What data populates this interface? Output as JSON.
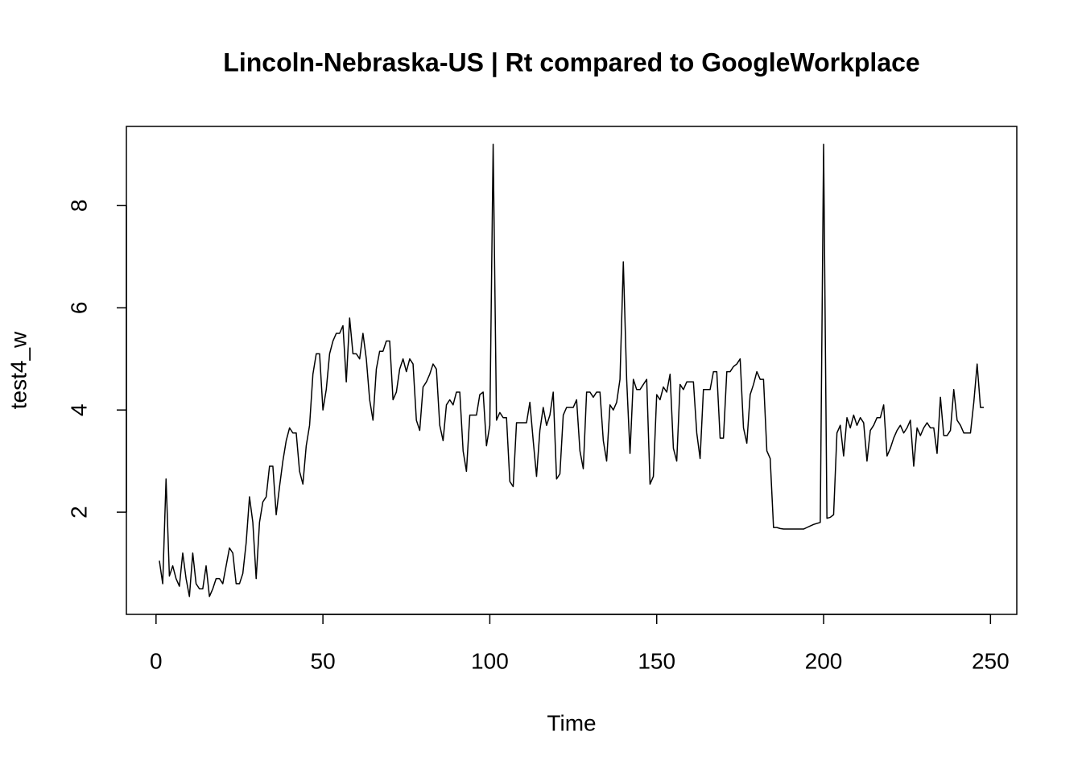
{
  "chart_data": {
    "type": "line",
    "title": "Lincoln-Nebraska-US | Rt compared to GoogleWorkplace",
    "xlabel": "Time",
    "ylabel": "test4_w",
    "color": "#000000",
    "x": [
      1,
      2,
      3,
      4,
      5,
      6,
      7,
      8,
      9,
      10,
      11,
      12,
      13,
      14,
      15,
      16,
      17,
      18,
      19,
      20,
      21,
      22,
      23,
      24,
      25,
      26,
      27,
      28,
      29,
      30,
      31,
      32,
      33,
      34,
      35,
      36,
      37,
      38,
      39,
      40,
      41,
      42,
      43,
      44,
      45,
      46,
      47,
      48,
      49,
      50,
      51,
      52,
      53,
      54,
      55,
      56,
      57,
      58,
      59,
      60,
      61,
      62,
      63,
      64,
      65,
      66,
      67,
      68,
      69,
      70,
      71,
      72,
      73,
      74,
      75,
      76,
      77,
      78,
      79,
      80,
      81,
      82,
      83,
      84,
      85,
      86,
      87,
      88,
      89,
      90,
      91,
      92,
      93,
      94,
      95,
      96,
      97,
      98,
      99,
      100,
      101,
      102,
      103,
      104,
      105,
      106,
      107,
      108,
      109,
      110,
      111,
      112,
      113,
      114,
      115,
      116,
      117,
      118,
      119,
      120,
      121,
      122,
      123,
      124,
      125,
      126,
      127,
      128,
      129,
      130,
      131,
      132,
      133,
      134,
      135,
      136,
      137,
      138,
      139,
      140,
      141,
      142,
      143,
      144,
      145,
      146,
      147,
      148,
      149,
      150,
      151,
      152,
      153,
      154,
      155,
      156,
      157,
      158,
      159,
      160,
      161,
      162,
      163,
      164,
      165,
      166,
      167,
      168,
      169,
      170,
      171,
      172,
      173,
      174,
      175,
      176,
      177,
      178,
      179,
      180,
      181,
      182,
      183,
      184,
      185,
      186,
      187,
      188,
      189,
      190,
      191,
      192,
      193,
      194,
      195,
      196,
      197,
      198,
      199,
      200,
      201,
      202,
      203,
      204,
      205,
      206,
      207,
      208,
      209,
      210,
      211,
      212,
      213,
      214,
      215,
      216,
      217,
      218,
      219,
      220,
      221,
      222,
      223,
      224,
      225,
      226,
      227,
      228,
      229,
      230,
      231,
      232,
      233,
      234,
      235,
      236,
      237,
      238,
      239,
      240,
      241,
      242,
      243,
      244,
      245,
      246,
      247,
      248
    ],
    "values": [
      1.05,
      0.6,
      2.65,
      0.75,
      0.95,
      0.7,
      0.55,
      1.2,
      0.7,
      0.35,
      1.2,
      0.6,
      0.5,
      0.5,
      0.95,
      0.35,
      0.5,
      0.7,
      0.7,
      0.6,
      0.95,
      1.3,
      1.2,
      0.6,
      0.6,
      0.8,
      1.4,
      2.3,
      1.8,
      0.7,
      1.8,
      2.2,
      2.3,
      2.9,
      2.9,
      1.95,
      2.5,
      3.0,
      3.4,
      3.65,
      3.55,
      3.55,
      2.8,
      2.55,
      3.3,
      3.7,
      4.7,
      5.1,
      5.1,
      4.0,
      4.4,
      5.1,
      5.35,
      5.5,
      5.5,
      5.65,
      4.55,
      5.8,
      5.1,
      5.1,
      5.0,
      5.5,
      5.0,
      4.2,
      3.8,
      4.8,
      5.15,
      5.15,
      5.35,
      5.35,
      4.2,
      4.35,
      4.8,
      5.0,
      4.75,
      5.0,
      4.9,
      3.8,
      3.6,
      4.45,
      4.55,
      4.7,
      4.9,
      4.8,
      3.7,
      3.4,
      4.1,
      4.2,
      4.1,
      4.35,
      4.35,
      3.2,
      2.8,
      3.9,
      3.9,
      3.9,
      4.3,
      4.35,
      3.3,
      3.7,
      9.2,
      3.8,
      3.95,
      3.85,
      3.85,
      2.6,
      2.5,
      3.75,
      3.75,
      3.75,
      3.75,
      4.15,
      3.4,
      2.7,
      3.6,
      4.05,
      3.7,
      3.9,
      4.35,
      2.65,
      2.75,
      3.9,
      4.05,
      4.05,
      4.05,
      4.2,
      3.2,
      2.85,
      4.35,
      4.35,
      4.25,
      4.35,
      4.35,
      3.4,
      3.0,
      4.1,
      4.0,
      4.15,
      4.6,
      6.9,
      4.6,
      3.15,
      4.6,
      4.4,
      4.4,
      4.5,
      4.6,
      2.55,
      2.7,
      4.3,
      4.2,
      4.45,
      4.35,
      4.7,
      3.25,
      3.0,
      4.5,
      4.4,
      4.55,
      4.55,
      4.55,
      3.55,
      3.05,
      4.4,
      4.4,
      4.4,
      4.75,
      4.75,
      3.45,
      3.45,
      4.75,
      4.75,
      4.85,
      4.9,
      5.0,
      3.65,
      3.35,
      4.3,
      4.5,
      4.75,
      4.6,
      4.6,
      3.2,
      3.05,
      1.7,
      1.7,
      1.68,
      1.67,
      1.67,
      1.67,
      1.67,
      1.67,
      1.67,
      1.67,
      1.7,
      1.73,
      1.76,
      1.78,
      1.8,
      9.2,
      1.88,
      1.9,
      1.95,
      3.55,
      3.7,
      3.1,
      3.85,
      3.65,
      3.9,
      3.7,
      3.85,
      3.75,
      3.0,
      3.6,
      3.7,
      3.85,
      3.85,
      4.1,
      3.1,
      3.25,
      3.45,
      3.6,
      3.7,
      3.55,
      3.65,
      3.8,
      2.9,
      3.65,
      3.5,
      3.65,
      3.75,
      3.65,
      3.65,
      3.15,
      4.25,
      3.5,
      3.5,
      3.6,
      4.4,
      3.8,
      3.7,
      3.55,
      3.55,
      3.55,
      4.15,
      4.9,
      4.05,
      4.05
    ],
    "xlim": [
      -8.88,
      257.88
    ],
    "xticks": [
      0,
      50,
      100,
      150,
      200,
      250
    ],
    "ylim": [
      0.0,
      9.55
    ],
    "yticks": [
      2,
      4,
      6,
      8
    ],
    "grid": false
  }
}
